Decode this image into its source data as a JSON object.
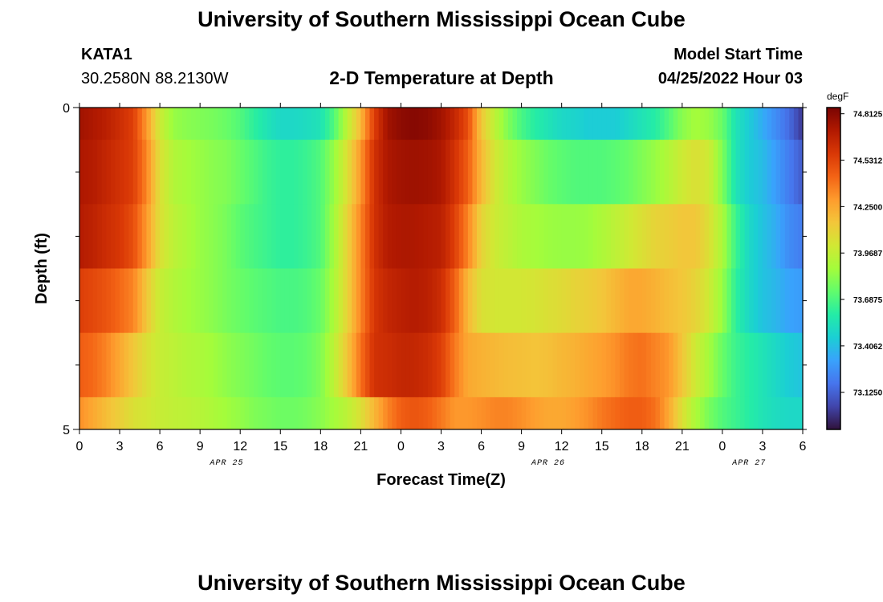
{
  "page": {
    "title_top": "University of Southern Mississippi Ocean Cube",
    "title_bottom": "University of Southern Mississippi Ocean Cube",
    "station_id": "KATA1",
    "coordinates": "30.2580N  88.2130W",
    "plot_title": "2-D Temperature at Depth",
    "model_start_label": "Model Start Time",
    "model_start_value": "04/25/2022 Hour 03"
  },
  "colors": {
    "colormap": [
      "#30123b",
      "#4145ab",
      "#4675ed",
      "#39a2fc",
      "#1bcfd4",
      "#24eca6",
      "#61fc6c",
      "#a4fc3b",
      "#d1e834",
      "#f3c63a",
      "#fe9b2d",
      "#f36315",
      "#d93806",
      "#b11901",
      "#7a0402"
    ]
  },
  "chart_data": {
    "type": "heatmap",
    "title": "2-D Temperature at Depth",
    "xlabel": "Forecast Time(Z)",
    "ylabel": "Depth (ft)",
    "x_tick_labels": [
      "0",
      "3",
      "6",
      "9",
      "12",
      "15",
      "18",
      "21",
      "0",
      "3",
      "6",
      "9",
      "12",
      "15",
      "18",
      "21",
      "0",
      "3",
      "6"
    ],
    "date_labels": [
      {
        "label": "APR 25",
        "hour": 11
      },
      {
        "label": "APR 26",
        "hour": 35
      },
      {
        "label": "APR 27",
        "hour": 50
      }
    ],
    "x_range_hours": [
      0,
      54
    ],
    "y_range_ft": [
      0,
      5
    ],
    "y_tick_labels": [
      "0",
      "5"
    ],
    "colorbar": {
      "unit": "degF",
      "min": 72.9,
      "max": 74.85,
      "tick_labels": [
        "74.8125",
        "74.5312",
        "74.2500",
        "73.9687",
        "73.6875",
        "73.4062",
        "73.1250"
      ],
      "tick_values": [
        74.8125,
        74.53125,
        74.25,
        73.96875,
        73.6875,
        73.40625,
        73.125
      ]
    },
    "depth_layers": [
      {
        "depth": "0-0.5",
        "times": [
          0,
          1,
          2,
          3,
          4,
          5,
          6,
          7,
          8,
          9,
          10,
          11,
          12,
          13,
          14,
          15,
          16,
          17,
          18,
          19,
          20,
          21,
          22,
          23,
          24,
          25,
          26,
          27,
          28,
          29,
          30,
          31,
          32,
          33,
          34,
          35,
          36,
          37,
          38,
          39,
          40,
          41,
          42,
          43,
          44,
          45,
          46,
          47,
          48,
          49,
          50,
          51,
          52,
          53,
          54
        ],
        "values": [
          74.75,
          74.72,
          74.68,
          74.62,
          74.55,
          74.3,
          74.0,
          73.85,
          73.82,
          73.8,
          73.78,
          73.75,
          73.7,
          73.62,
          73.55,
          73.5,
          73.5,
          73.52,
          73.55,
          73.7,
          73.95,
          74.2,
          74.55,
          74.75,
          74.8,
          74.82,
          74.8,
          74.75,
          74.65,
          74.5,
          74.15,
          73.95,
          73.8,
          73.68,
          73.6,
          73.55,
          73.5,
          73.48,
          73.45,
          73.45,
          73.45,
          73.5,
          73.55,
          73.6,
          73.7,
          73.82,
          73.88,
          73.85,
          73.75,
          73.55,
          73.45,
          73.35,
          73.25,
          73.15,
          73.0
        ]
      },
      {
        "depth": "0.5-1.5",
        "times": [
          0,
          1,
          2,
          3,
          4,
          5,
          6,
          7,
          8,
          9,
          10,
          11,
          12,
          13,
          14,
          15,
          16,
          17,
          18,
          19,
          20,
          21,
          22,
          23,
          24,
          25,
          26,
          27,
          28,
          29,
          30,
          31,
          32,
          33,
          34,
          35,
          36,
          37,
          38,
          39,
          40,
          41,
          42,
          43,
          44,
          45,
          46,
          47,
          48,
          49,
          50,
          51,
          52,
          53,
          54
        ],
        "values": [
          74.72,
          74.7,
          74.65,
          74.6,
          74.55,
          74.35,
          74.05,
          73.92,
          73.88,
          73.85,
          73.82,
          73.8,
          73.75,
          73.7,
          73.65,
          73.62,
          73.62,
          73.65,
          73.7,
          73.85,
          74.05,
          74.3,
          74.6,
          74.72,
          74.75,
          74.76,
          74.75,
          74.72,
          74.6,
          74.45,
          74.2,
          74.02,
          73.92,
          73.85,
          73.8,
          73.75,
          73.72,
          73.7,
          73.7,
          73.7,
          73.72,
          73.75,
          73.8,
          73.85,
          73.92,
          74.0,
          74.05,
          74.0,
          73.8,
          73.55,
          73.45,
          73.4,
          73.3,
          73.2,
          73.1
        ]
      },
      {
        "depth": "1.5-2.5",
        "times": [
          0,
          1,
          2,
          3,
          4,
          5,
          6,
          7,
          8,
          9,
          10,
          11,
          12,
          13,
          14,
          15,
          16,
          17,
          18,
          19,
          20,
          21,
          22,
          23,
          24,
          25,
          26,
          27,
          28,
          29,
          30,
          31,
          32,
          33,
          34,
          35,
          36,
          37,
          38,
          39,
          40,
          41,
          42,
          43,
          44,
          45,
          46,
          47,
          48,
          49,
          50,
          51,
          52,
          53,
          54
        ],
        "values": [
          74.7,
          74.67,
          74.62,
          74.58,
          74.5,
          74.3,
          74.05,
          73.95,
          73.9,
          73.85,
          73.82,
          73.78,
          73.72,
          73.68,
          73.65,
          73.62,
          73.62,
          73.65,
          73.7,
          73.88,
          74.1,
          74.35,
          74.6,
          74.7,
          74.72,
          74.72,
          74.7,
          74.68,
          74.55,
          74.35,
          74.1,
          74.0,
          73.95,
          73.9,
          73.88,
          73.86,
          73.85,
          73.85,
          73.86,
          73.9,
          73.95,
          74.0,
          74.05,
          74.1,
          74.12,
          74.15,
          74.15,
          74.05,
          73.9,
          73.65,
          73.5,
          73.42,
          73.35,
          73.25,
          73.2
        ]
      },
      {
        "depth": "2.5-3.5",
        "times": [
          0,
          1,
          2,
          3,
          4,
          5,
          6,
          7,
          8,
          9,
          10,
          11,
          12,
          13,
          14,
          15,
          16,
          17,
          18,
          19,
          20,
          21,
          22,
          23,
          24,
          25,
          26,
          27,
          28,
          29,
          30,
          31,
          32,
          33,
          34,
          35,
          36,
          37,
          38,
          39,
          40,
          41,
          42,
          43,
          44,
          45,
          46,
          47,
          48,
          49,
          50,
          51,
          52,
          53,
          54
        ],
        "values": [
          74.55,
          74.52,
          74.48,
          74.42,
          74.35,
          74.15,
          73.98,
          73.92,
          73.88,
          73.85,
          73.82,
          73.78,
          73.75,
          73.72,
          73.7,
          73.68,
          73.68,
          73.7,
          73.75,
          73.9,
          74.1,
          74.35,
          74.58,
          74.65,
          74.68,
          74.7,
          74.68,
          74.62,
          74.45,
          74.2,
          74.05,
          74.02,
          74.02,
          74.02,
          74.03,
          74.05,
          74.07,
          74.1,
          74.12,
          74.15,
          74.2,
          74.25,
          74.25,
          74.22,
          74.18,
          74.15,
          74.1,
          74.0,
          73.85,
          73.62,
          73.5,
          73.42,
          73.38,
          73.32,
          73.3
        ]
      },
      {
        "depth": "3.5-4.5",
        "times": [
          0,
          1,
          2,
          3,
          4,
          5,
          6,
          7,
          8,
          9,
          10,
          11,
          12,
          13,
          14,
          15,
          16,
          17,
          18,
          19,
          20,
          21,
          22,
          23,
          24,
          25,
          26,
          27,
          28,
          29,
          30,
          31,
          32,
          33,
          34,
          35,
          36,
          37,
          38,
          39,
          40,
          41,
          42,
          43,
          44,
          45,
          46,
          47,
          48,
          49,
          50,
          51,
          52,
          53,
          54
        ],
        "values": [
          74.45,
          74.42,
          74.35,
          74.25,
          74.15,
          74.05,
          73.98,
          73.95,
          73.92,
          73.9,
          73.87,
          73.83,
          73.8,
          73.77,
          73.74,
          73.72,
          73.72,
          73.74,
          73.8,
          73.95,
          74.15,
          74.4,
          74.6,
          74.62,
          74.65,
          74.65,
          74.62,
          74.55,
          74.38,
          74.25,
          74.22,
          74.2,
          74.18,
          74.17,
          74.16,
          74.17,
          74.2,
          74.22,
          74.25,
          74.28,
          74.32,
          74.38,
          74.4,
          74.35,
          74.3,
          74.15,
          74.0,
          73.88,
          73.75,
          73.65,
          73.6,
          73.55,
          73.5,
          73.45,
          73.42
        ]
      },
      {
        "depth": "4.5-5",
        "times": [
          0,
          1,
          2,
          3,
          4,
          5,
          6,
          7,
          8,
          9,
          10,
          11,
          12,
          13,
          14,
          15,
          16,
          17,
          18,
          19,
          20,
          21,
          22,
          23,
          24,
          25,
          26,
          27,
          28,
          29,
          30,
          31,
          32,
          33,
          34,
          35,
          36,
          37,
          38,
          39,
          40,
          41,
          42,
          43,
          44,
          45,
          46,
          47,
          48,
          49,
          50,
          51,
          52,
          53,
          54
        ],
        "values": [
          74.32,
          74.25,
          74.18,
          74.12,
          74.05,
          74.02,
          73.98,
          73.96,
          73.95,
          73.93,
          73.9,
          73.87,
          73.84,
          73.8,
          73.78,
          73.76,
          73.76,
          73.78,
          73.82,
          73.88,
          73.95,
          74.05,
          74.2,
          74.35,
          74.45,
          74.48,
          74.45,
          74.38,
          74.3,
          74.3,
          74.32,
          74.35,
          74.35,
          74.32,
          74.28,
          74.25,
          74.25,
          74.28,
          74.32,
          74.38,
          74.42,
          74.45,
          74.45,
          74.4,
          74.25,
          74.05,
          73.9,
          73.78,
          73.7,
          73.65,
          73.6,
          73.55,
          73.52,
          73.5,
          73.5
        ]
      }
    ]
  }
}
